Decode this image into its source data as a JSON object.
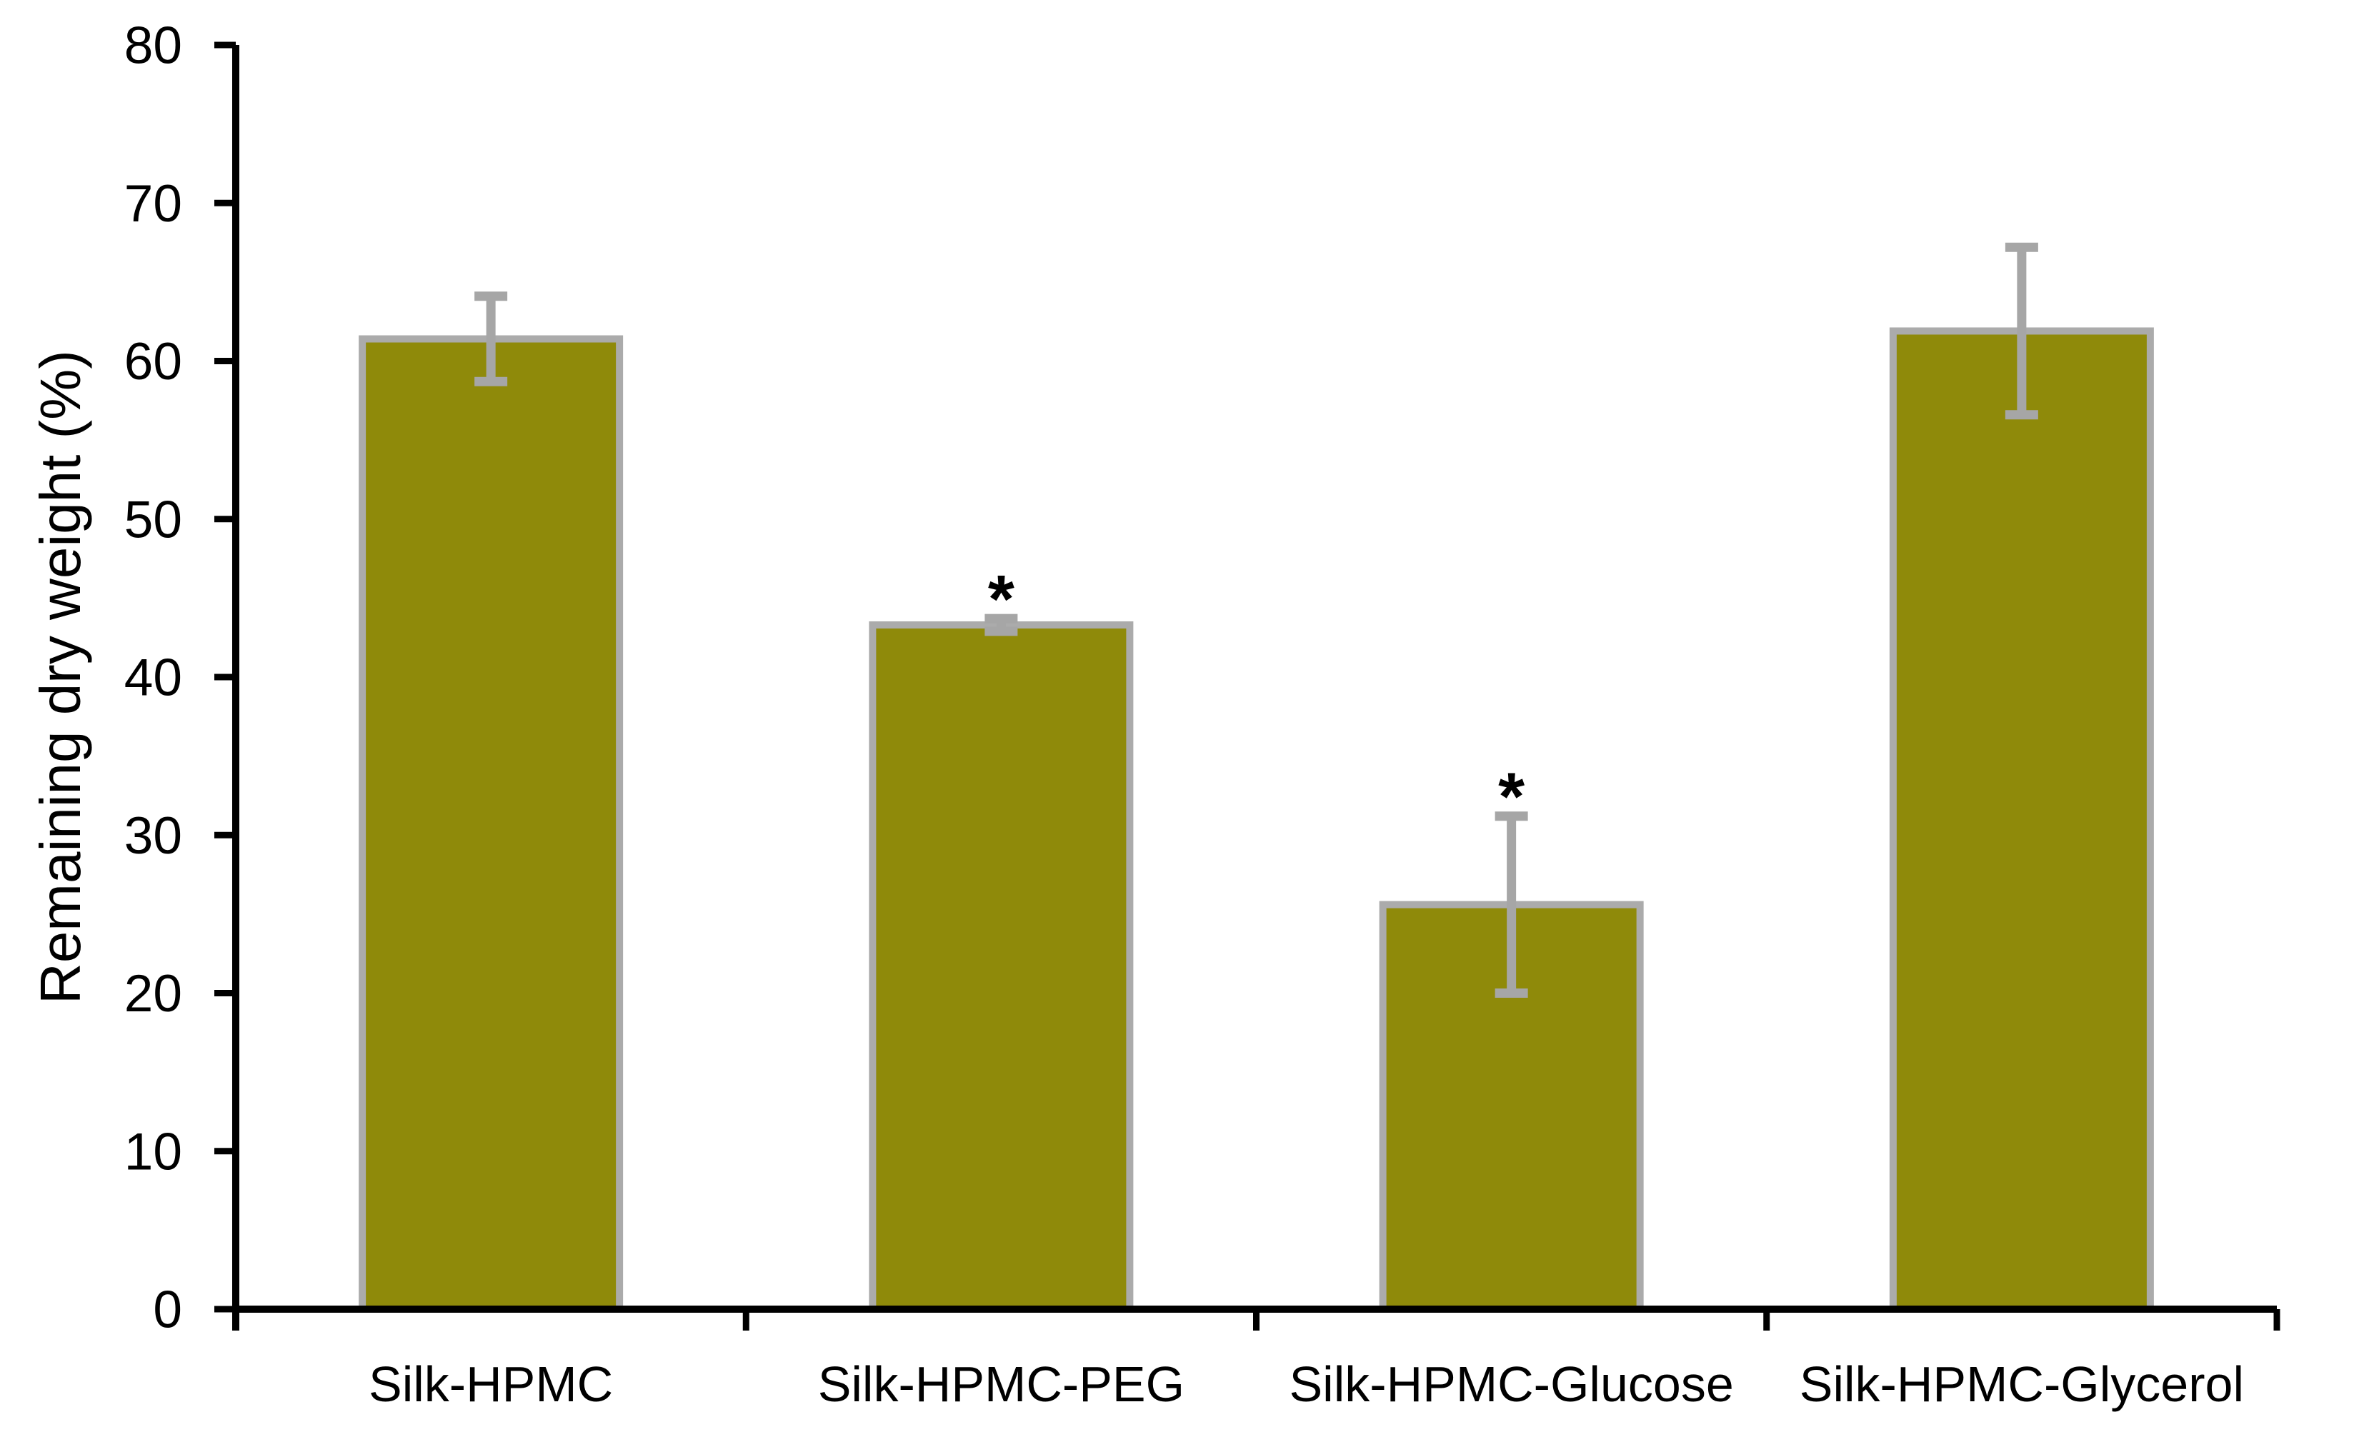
{
  "figure": {
    "background_color": "#FFFFFF"
  },
  "chart_data": {
    "type": "bar",
    "title": "",
    "xlabel": "",
    "ylabel": "Remaining dry weight (%)",
    "categories": [
      "Silk-HPMC",
      "Silk-HPMC-PEG",
      "Silk-HPMC-Glucose",
      "Silk-HPMC-Glycerol"
    ],
    "values": [
      61.4,
      43.3,
      25.6,
      61.9
    ],
    "error_bars": [
      2.7,
      0.4,
      5.6,
      5.3
    ],
    "significance_markers": [
      "",
      "*",
      "*",
      ""
    ],
    "ylim": [
      0,
      80
    ],
    "yticks": [
      0,
      10,
      20,
      30,
      40,
      50,
      60,
      70,
      80
    ],
    "grid": false,
    "legend": null,
    "bar_fill_color": "#8F8A0A",
    "bar_border_color": "#ABABAB",
    "error_bar_color": "#A6A6A6",
    "axis_color": "#000000",
    "text_color": "#000000"
  }
}
